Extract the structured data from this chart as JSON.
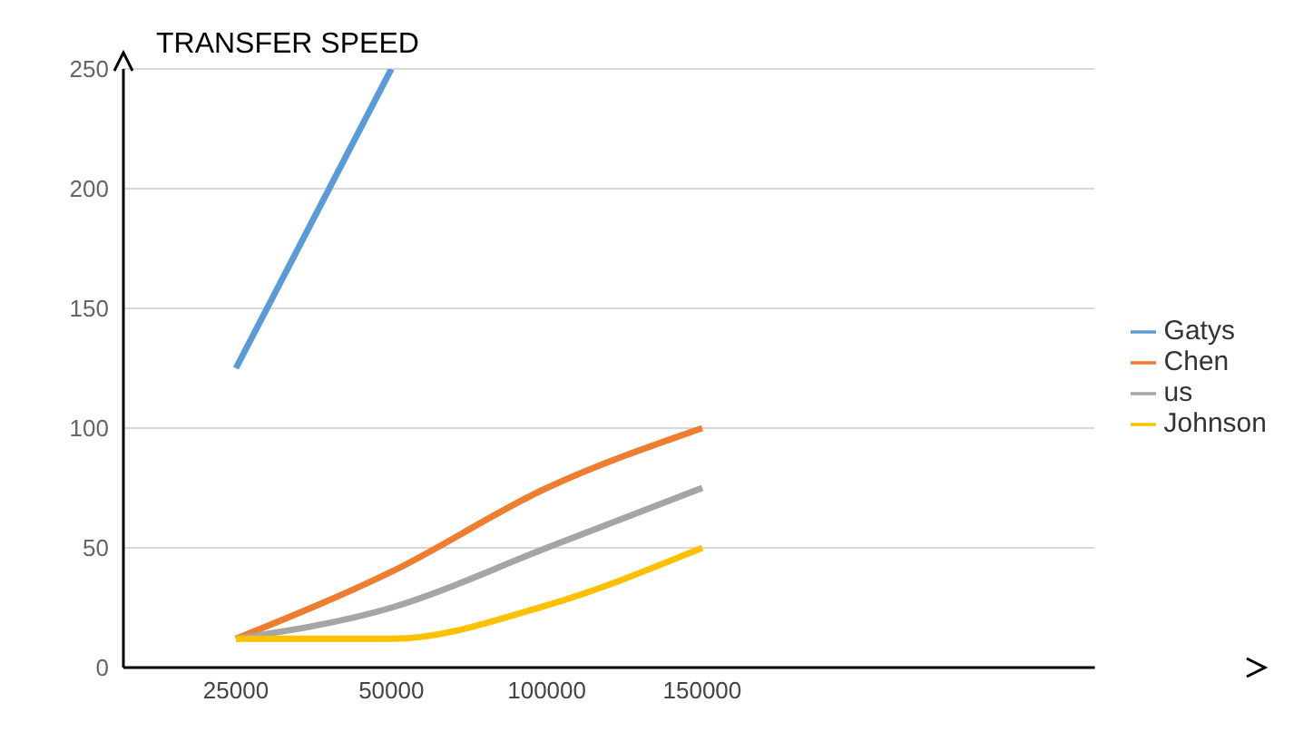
{
  "chart_data": {
    "type": "line",
    "ylabel": "TRANSFER SPEED",
    "categories": [
      "25000",
      "50000",
      "100000",
      "150000",
      null,
      null
    ],
    "series": [
      {
        "name": "Gatys",
        "color": "#5b9bd5",
        "values": [
          125,
          250,
          null,
          null,
          null,
          null
        ]
      },
      {
        "name": "Chen",
        "color": "#ed7d31",
        "values": [
          12,
          40,
          75,
          100,
          null,
          null
        ]
      },
      {
        "name": "us",
        "color": "#a5a5a5",
        "values": [
          12,
          25,
          50,
          75,
          null,
          null
        ]
      },
      {
        "name": "Johnson",
        "color": "#ffc000",
        "values": [
          12,
          12,
          26,
          50,
          null,
          null
        ]
      }
    ],
    "ylim": [
      0,
      250
    ],
    "yticks": [
      0,
      50,
      100,
      150,
      200,
      250
    ],
    "grid": "y",
    "legend": "right",
    "marker": "none",
    "line_style": "solid"
  }
}
